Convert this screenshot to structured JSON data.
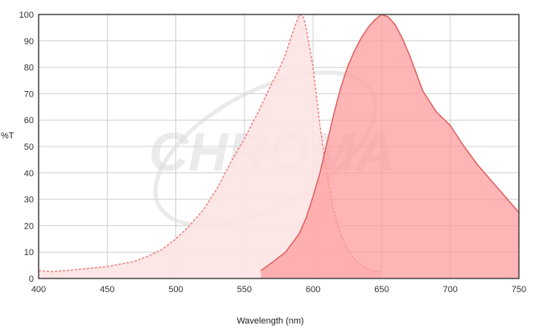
{
  "chart_data": {
    "type": "area",
    "xlabel": "Wavelength (nm)",
    "ylabel": "%T",
    "xlim": [
      400,
      750
    ],
    "ylim": [
      0,
      100
    ],
    "x_ticks": [
      400,
      450,
      500,
      550,
      600,
      650,
      700,
      750
    ],
    "y_ticks": [
      0,
      10,
      20,
      30,
      40,
      50,
      60,
      70,
      80,
      90,
      100
    ],
    "grid": true,
    "series": [
      {
        "color": "#f08080",
        "fill": "#fde3e3",
        "line_style": "dashed",
        "x": [
          400,
          410,
          420,
          430,
          440,
          450,
          460,
          470,
          480,
          490,
          500,
          510,
          520,
          530,
          540,
          550,
          560,
          570,
          575,
          580,
          585,
          590,
          593,
          595,
          600,
          605,
          610,
          615,
          620,
          625,
          630,
          635,
          640,
          645,
          650
        ],
        "y": [
          3,
          2.6,
          3,
          3.5,
          4,
          4.5,
          5.5,
          6.5,
          8.5,
          11,
          15,
          20,
          26,
          34,
          44,
          53,
          63,
          74,
          79,
          85,
          93,
          100,
          99,
          95,
          80,
          58,
          40,
          26,
          17,
          11,
          7.5,
          5,
          3.5,
          2.8,
          2.5
        ]
      },
      {
        "color": "#e06060",
        "fill": "#ff9c9c",
        "line_style": "solid",
        "x": [
          562,
          570,
          580,
          590,
          595,
          600,
          605,
          610,
          615,
          620,
          625,
          630,
          635,
          640,
          645,
          650,
          655,
          660,
          665,
          670,
          675,
          680,
          690,
          700,
          710,
          720,
          730,
          740,
          750
        ],
        "y": [
          3,
          6,
          10,
          17,
          23,
          31,
          40,
          51,
          62,
          72,
          80,
          86,
          91,
          95,
          98,
          100,
          99,
          96,
          91,
          85,
          78,
          71,
          63,
          58,
          50,
          43,
          37,
          31,
          25
        ]
      }
    ],
    "watermark": "CHROMA"
  }
}
